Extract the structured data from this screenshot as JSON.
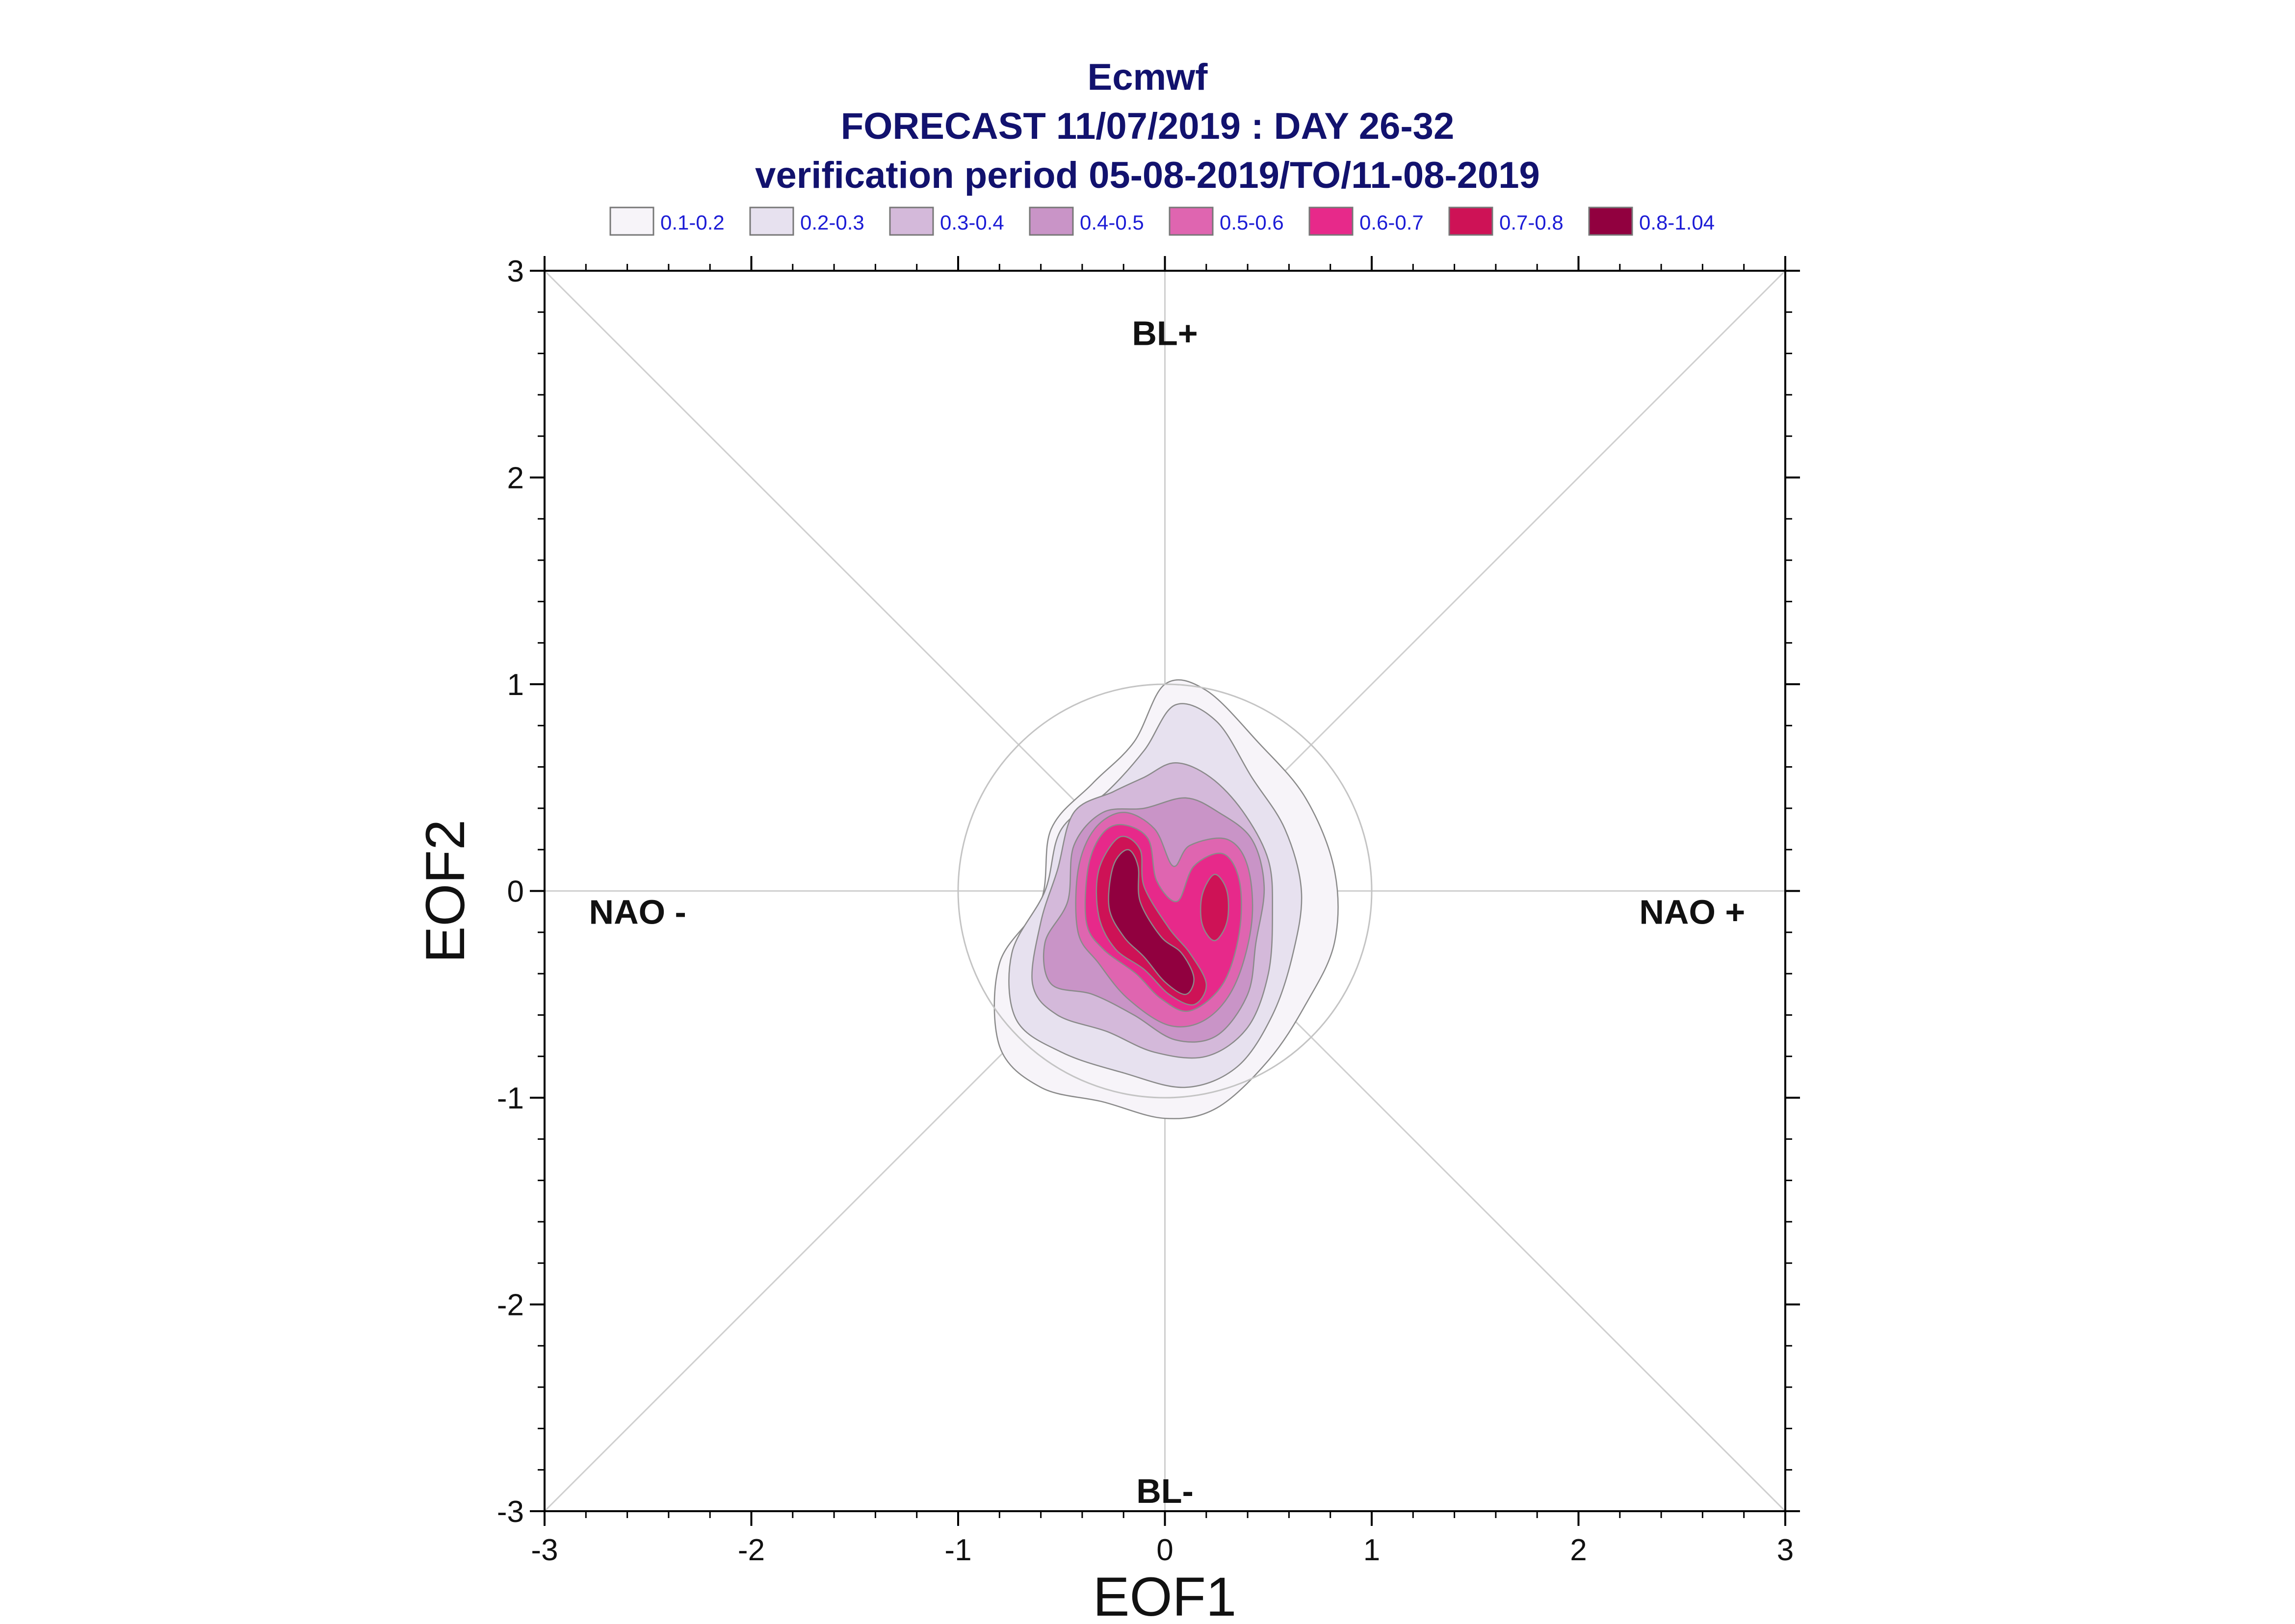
{
  "chart_data": {
    "type": "heatmap",
    "subtype": "filled-contour probability density",
    "title_lines": [
      "Ecmwf",
      "FORECAST 11/07/2019 : DAY 26-32",
      "verification period 05-08-2019/TO/11-08-2019"
    ],
    "xlabel": "EOF1",
    "ylabel": "EOF2",
    "xlim": [
      -3,
      3
    ],
    "ylim": [
      -3,
      3
    ],
    "x_ticks": [
      "-3",
      "-2",
      "-1",
      "0",
      "1",
      "2",
      "3"
    ],
    "y_ticks": [
      "-3",
      "-2",
      "-1",
      "0",
      "1",
      "2",
      "3"
    ],
    "grid": false,
    "legend_position": "top",
    "legend": [
      {
        "label": "0.1-0.2",
        "color": "#f7f4f9"
      },
      {
        "label": "0.2-0.3",
        "color": "#e7e1ef"
      },
      {
        "label": "0.3-0.4",
        "color": "#d4b9da"
      },
      {
        "label": "0.4-0.5",
        "color": "#c994c7"
      },
      {
        "label": "0.5-0.6",
        "color": "#df65b0"
      },
      {
        "label": "0.6-0.7",
        "color": "#e7298a"
      },
      {
        "label": "0.7-0.8",
        "color": "#ce1256"
      },
      {
        "label": "0.8-1.04",
        "color": "#91003f"
      }
    ],
    "region_labels": [
      {
        "text": "BL+",
        "x": 0.0,
        "y": 2.7
      },
      {
        "text": "BL-",
        "x": 0.0,
        "y": -2.9
      },
      {
        "text": "NAO -",
        "x": -2.55,
        "y": -0.1
      },
      {
        "text": "NAO +",
        "x": 2.55,
        "y": -0.1
      }
    ],
    "reference_circle": {
      "center": [
        0,
        0
      ],
      "radius": 1.0
    },
    "contours": [
      {
        "level": "0.1-0.2",
        "color": "#f7f4f9",
        "points": [
          [
            0.0,
            1.0
          ],
          [
            0.2,
            0.97
          ],
          [
            0.45,
            0.72
          ],
          [
            0.68,
            0.45
          ],
          [
            0.82,
            0.1
          ],
          [
            0.82,
            -0.25
          ],
          [
            0.68,
            -0.55
          ],
          [
            0.5,
            -0.82
          ],
          [
            0.25,
            -1.05
          ],
          [
            0.0,
            -1.1
          ],
          [
            -0.3,
            -1.02
          ],
          [
            -0.6,
            -0.95
          ],
          [
            -0.8,
            -0.75
          ],
          [
            -0.8,
            -0.35
          ],
          [
            -0.6,
            -0.05
          ],
          [
            -0.55,
            0.3
          ],
          [
            -0.35,
            0.52
          ],
          [
            -0.15,
            0.72
          ]
        ]
      },
      {
        "level": "0.2-0.3",
        "color": "#e7e1ef",
        "points": [
          [
            0.05,
            0.9
          ],
          [
            0.25,
            0.82
          ],
          [
            0.42,
            0.55
          ],
          [
            0.58,
            0.3
          ],
          [
            0.66,
            0.0
          ],
          [
            0.62,
            -0.3
          ],
          [
            0.52,
            -0.6
          ],
          [
            0.35,
            -0.85
          ],
          [
            0.1,
            -0.95
          ],
          [
            -0.2,
            -0.88
          ],
          [
            -0.5,
            -0.78
          ],
          [
            -0.72,
            -0.62
          ],
          [
            -0.74,
            -0.3
          ],
          [
            -0.58,
            0.0
          ],
          [
            -0.5,
            0.3
          ],
          [
            -0.28,
            0.48
          ],
          [
            -0.1,
            0.68
          ]
        ]
      },
      {
        "level": "0.3-0.4",
        "color": "#d4b9da",
        "points": [
          [
            0.05,
            0.62
          ],
          [
            0.22,
            0.55
          ],
          [
            0.38,
            0.38
          ],
          [
            0.5,
            0.15
          ],
          [
            0.52,
            -0.1
          ],
          [
            0.5,
            -0.4
          ],
          [
            0.4,
            -0.66
          ],
          [
            0.2,
            -0.8
          ],
          [
            -0.05,
            -0.78
          ],
          [
            -0.28,
            -0.68
          ],
          [
            -0.52,
            -0.6
          ],
          [
            -0.64,
            -0.45
          ],
          [
            -0.6,
            -0.15
          ],
          [
            -0.52,
            0.1
          ],
          [
            -0.44,
            0.38
          ],
          [
            -0.25,
            0.48
          ],
          [
            -0.1,
            0.55
          ]
        ]
      },
      {
        "level": "0.4-0.5",
        "color": "#c994c7",
        "points": [
          [
            0.1,
            0.45
          ],
          [
            0.26,
            0.38
          ],
          [
            0.42,
            0.25
          ],
          [
            0.48,
            0.02
          ],
          [
            0.44,
            -0.25
          ],
          [
            0.4,
            -0.5
          ],
          [
            0.25,
            -0.7
          ],
          [
            0.05,
            -0.72
          ],
          [
            -0.15,
            -0.6
          ],
          [
            -0.35,
            -0.5
          ],
          [
            -0.55,
            -0.45
          ],
          [
            -0.58,
            -0.25
          ],
          [
            -0.47,
            -0.05
          ],
          [
            -0.44,
            0.22
          ],
          [
            -0.3,
            0.38
          ],
          [
            -0.1,
            0.4
          ]
        ]
      },
      {
        "level": "0.5-0.6",
        "color": "#df65b0",
        "points": [
          [
            -0.2,
            0.38
          ],
          [
            -0.05,
            0.3
          ],
          [
            0.04,
            0.12
          ],
          [
            0.12,
            0.22
          ],
          [
            0.3,
            0.25
          ],
          [
            0.4,
            0.12
          ],
          [
            0.42,
            -0.15
          ],
          [
            0.34,
            -0.45
          ],
          [
            0.2,
            -0.62
          ],
          [
            0.02,
            -0.65
          ],
          [
            -0.18,
            -0.52
          ],
          [
            -0.32,
            -0.35
          ],
          [
            -0.42,
            -0.2
          ],
          [
            -0.42,
            0.1
          ],
          [
            -0.34,
            0.3
          ]
        ]
      },
      {
        "level": "0.6-0.7",
        "color": "#e7298a",
        "points": [
          [
            -0.2,
            0.32
          ],
          [
            -0.08,
            0.25
          ],
          [
            -0.04,
            0.05
          ],
          [
            0.06,
            -0.05
          ],
          [
            0.14,
            0.12
          ],
          [
            0.28,
            0.18
          ],
          [
            0.36,
            0.05
          ],
          [
            0.36,
            -0.2
          ],
          [
            0.28,
            -0.45
          ],
          [
            0.12,
            -0.58
          ],
          [
            -0.02,
            -0.52
          ],
          [
            -0.14,
            -0.4
          ],
          [
            -0.3,
            -0.28
          ],
          [
            -0.38,
            -0.15
          ],
          [
            -0.37,
            0.12
          ],
          [
            -0.3,
            0.28
          ]
        ]
      },
      {
        "level": "0.7-0.8",
        "color": "#ce1256",
        "points": [
          [
            -0.22,
            0.26
          ],
          [
            -0.12,
            0.2
          ],
          [
            -0.1,
            0.02
          ],
          [
            0.02,
            -0.18
          ],
          [
            0.12,
            -0.3
          ],
          [
            0.2,
            -0.45
          ],
          [
            0.14,
            -0.55
          ],
          [
            0.02,
            -0.5
          ],
          [
            -0.1,
            -0.38
          ],
          [
            -0.24,
            -0.28
          ],
          [
            -0.32,
            -0.12
          ],
          [
            -0.32,
            0.1
          ]
        ]
      },
      {
        "level": "0.7-0.8",
        "color": "#ce1256",
        "points": [
          [
            0.24,
            0.08
          ],
          [
            0.3,
            0.0
          ],
          [
            0.3,
            -0.15
          ],
          [
            0.24,
            -0.24
          ],
          [
            0.18,
            -0.16
          ],
          [
            0.18,
            -0.02
          ]
        ]
      },
      {
        "level": "0.8-1.04",
        "color": "#91003f",
        "points": [
          [
            -0.18,
            0.2
          ],
          [
            -0.13,
            0.12
          ],
          [
            -0.12,
            -0.05
          ],
          [
            -0.02,
            -0.22
          ],
          [
            0.08,
            -0.3
          ],
          [
            0.14,
            -0.42
          ],
          [
            0.1,
            -0.5
          ],
          [
            0.0,
            -0.44
          ],
          [
            -0.1,
            -0.32
          ],
          [
            -0.2,
            -0.22
          ],
          [
            -0.27,
            -0.08
          ],
          [
            -0.25,
            0.12
          ]
        ]
      }
    ]
  }
}
